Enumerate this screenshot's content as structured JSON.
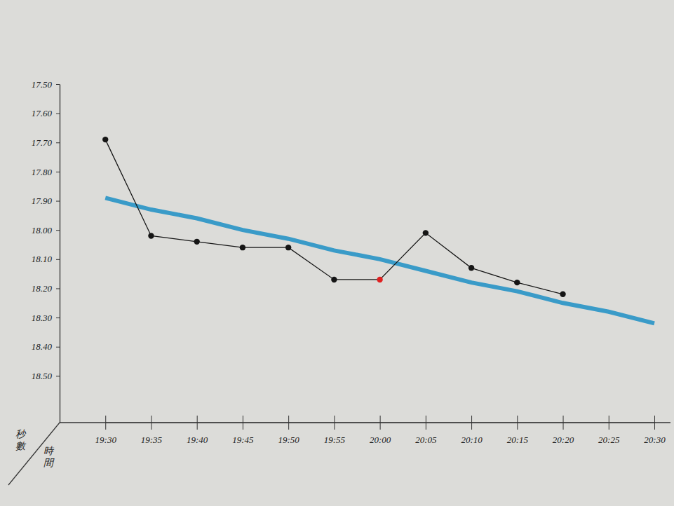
{
  "chart_data": {
    "type": "line",
    "x_label": "時間",
    "y_label": "秒數",
    "categories": [
      "19:30",
      "19:35",
      "19:40",
      "19:45",
      "19:50",
      "19:55",
      "20:00",
      "20:05",
      "20:10",
      "20:15",
      "20:20",
      "20:25",
      "20:30"
    ],
    "ylim": [
      18.66,
      17.5
    ],
    "yticks": [
      {
        "value": 17.5,
        "label": "17.50"
      },
      {
        "value": 17.6,
        "label": "17.60"
      },
      {
        "value": 17.7,
        "label": "17.70"
      },
      {
        "value": 17.8,
        "label": "17.80"
      },
      {
        "value": 17.9,
        "label": "17.90"
      },
      {
        "value": 18.0,
        "label": "18.00"
      },
      {
        "value": 18.1,
        "label": "18.10"
      },
      {
        "value": 18.2,
        "label": "18.20"
      },
      {
        "value": 18.3,
        "label": "18.30"
      },
      {
        "value": 18.4,
        "label": "18.40"
      },
      {
        "value": 18.5,
        "label": "18.50"
      }
    ],
    "series": [
      {
        "color": "#151515",
        "marker": "circle",
        "line_style": "solid",
        "colors": [
          "#151515",
          "#151515",
          "#151515",
          "#151515",
          "#151515",
          "#151515",
          "#e02020",
          "#151515",
          "#151515",
          "#151515",
          "#151515",
          "#151515",
          "#151515"
        ],
        "values": [
          17.69,
          18.02,
          18.04,
          18.06,
          18.06,
          18.17,
          18.17,
          18.01,
          18.13,
          18.18,
          18.22,
          null,
          null
        ]
      },
      {
        "color": "#3a9bc8",
        "marker": "none",
        "line_style": "solid",
        "values": [
          17.89,
          17.93,
          17.96,
          18.0,
          18.03,
          18.07,
          18.1,
          18.14,
          18.18,
          18.21,
          18.25,
          18.28,
          18.32
        ]
      }
    ]
  }
}
